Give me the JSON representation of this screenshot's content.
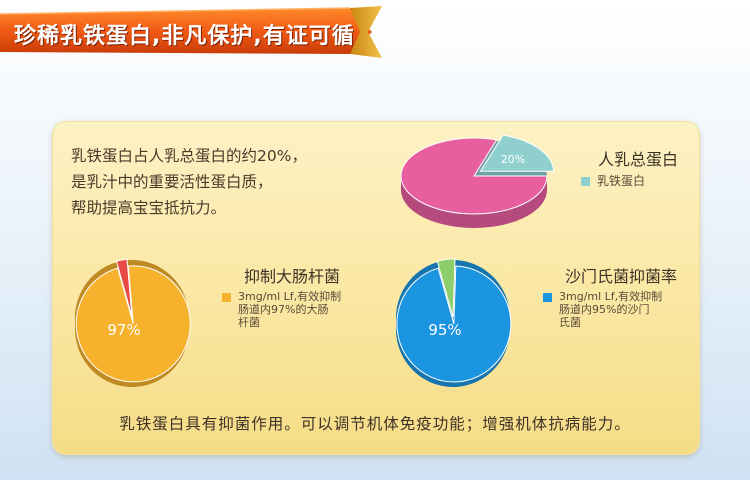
{
  "banner": {
    "text": "珍稀乳铁蛋白,非凡保护,有证可循"
  },
  "intro": {
    "lines": [
      "乳铁蛋白占人乳总蛋白的约20%，",
      "是乳汁中的重要活性蛋白质，",
      "帮助提高宝宝抵抗力。"
    ]
  },
  "bottom_note": "乳铁蛋白具有抑菌作用。可以调节机体免疫功能；增强机体抗病能力。",
  "chart_data": [
    {
      "type": "pie",
      "title": "人乳总蛋白",
      "values": [
        20,
        80
      ],
      "labels": [
        "20%",
        ""
      ],
      "colors": [
        "#8fd0cf",
        "#e85fa0"
      ],
      "legend": {
        "text": "乳铁蛋白",
        "color": "#8fd0cf",
        "position": "right"
      }
    },
    {
      "type": "pie",
      "title": "抑制大肠杆菌",
      "values": [
        97,
        3
      ],
      "labels": [
        "97%",
        ""
      ],
      "colors": [
        "#f6b12d",
        "#e84b44"
      ],
      "legend": {
        "lines": [
          "3mg/ml Lf,有效抑制",
          "肠道内97%的大肠",
          "杆菌"
        ],
        "color": "#f6b12d",
        "position": "right"
      }
    },
    {
      "type": "pie",
      "title": "沙门氏菌抑菌率",
      "values": [
        95,
        5
      ],
      "labels": [
        "95%",
        ""
      ],
      "colors": [
        "#1c95e0",
        "#8ccf6a"
      ],
      "legend": {
        "lines": [
          "3mg/ml Lf,有效抑制",
          "肠道内95%的沙门",
          "氏菌"
        ],
        "color": "#1c95e0",
        "position": "right"
      }
    }
  ]
}
